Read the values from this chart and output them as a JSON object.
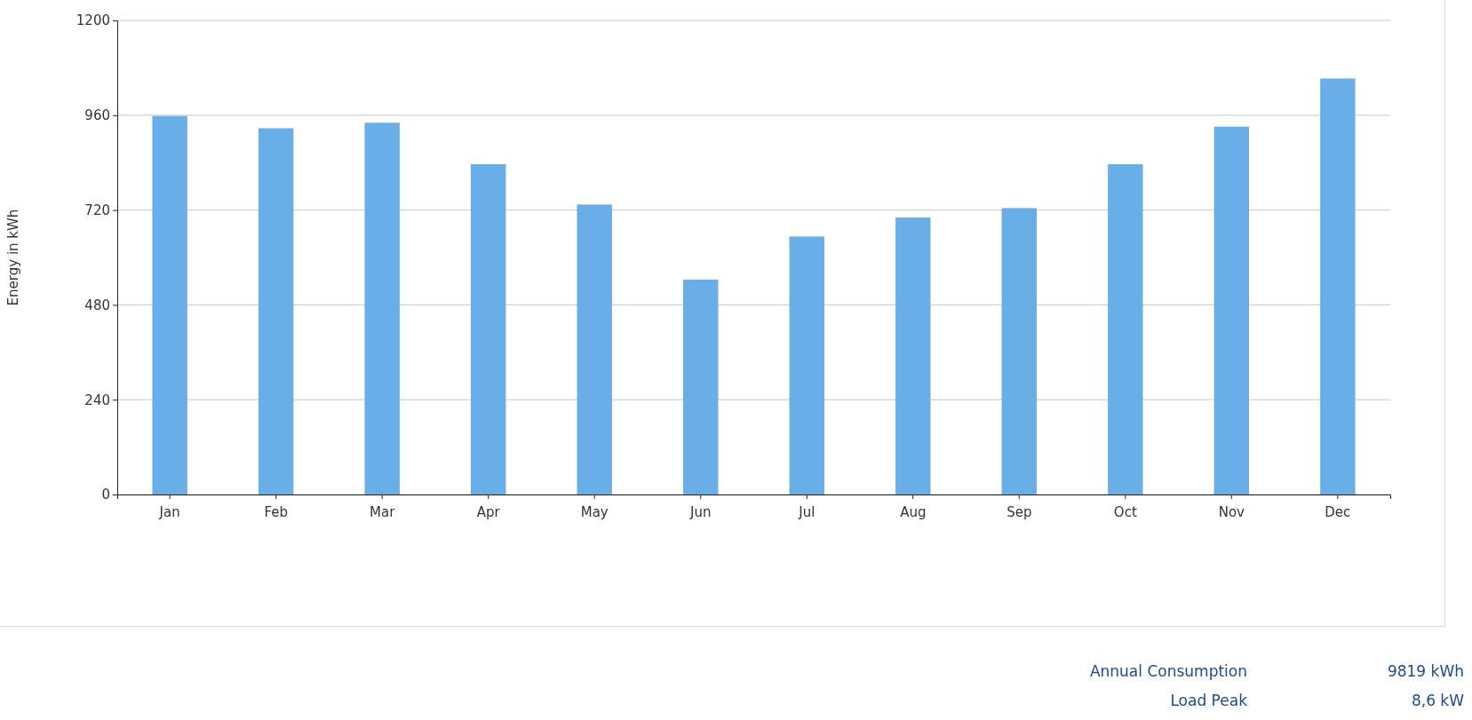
{
  "chart_data": {
    "type": "bar",
    "ylabel": "Energy in kWh",
    "categories": [
      "Jan",
      "Feb",
      "Mar",
      "Apr",
      "May",
      "Jun",
      "Jul",
      "Aug",
      "Sep",
      "Oct",
      "Nov",
      "Dec"
    ],
    "values": [
      958,
      927,
      941,
      836,
      734,
      544,
      653,
      701,
      725,
      836,
      931,
      1053
    ],
    "color": "#6aaee8",
    "ylim": [
      0,
      1200
    ],
    "yticks": [
      0,
      240,
      480,
      720,
      960,
      1200
    ],
    "grid": "y",
    "annotations": [
      "Annual Consumption",
      "9819 kWh",
      "Load Peak",
      "8,6 kW"
    ]
  }
}
